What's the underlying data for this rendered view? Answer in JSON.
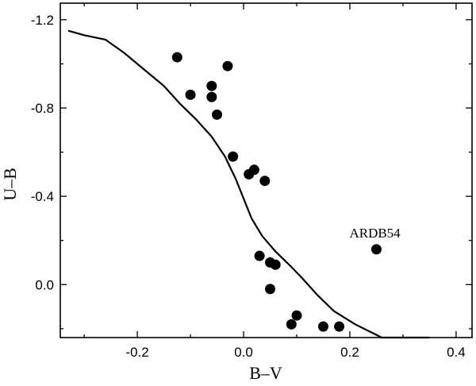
{
  "chart_data": {
    "type": "scatter",
    "xlabel": "B–V",
    "ylabel": "U–B",
    "xlim": [
      -0.345,
      0.43
    ],
    "ylim": [
      0.24,
      -1.275
    ],
    "y_inverted": true,
    "grid": false,
    "x_ticks": [
      {
        "value": -0.2,
        "label": "-0.2"
      },
      {
        "value": 0.0,
        "label": "0.0"
      },
      {
        "value": 0.2,
        "label": "0.2"
      },
      {
        "value": 0.4,
        "label": "0.4"
      }
    ],
    "y_ticks": [
      {
        "value": -1.2,
        "label": "-1.2"
      },
      {
        "value": -0.8,
        "label": "-0.8"
      },
      {
        "value": -0.4,
        "label": "-0.4"
      },
      {
        "value": 0.0,
        "label": "0.0"
      }
    ],
    "series": [
      {
        "kind": "line",
        "points": [
          [
            -0.33,
            -1.15
          ],
          [
            -0.3,
            -1.13
          ],
          [
            -0.26,
            -1.11
          ],
          [
            -0.225,
            -1.05
          ],
          [
            -0.19,
            -0.98
          ],
          [
            -0.15,
            -0.9
          ],
          [
            -0.12,
            -0.82
          ],
          [
            -0.09,
            -0.75
          ],
          [
            -0.06,
            -0.67
          ],
          [
            -0.035,
            -0.58
          ],
          [
            -0.015,
            -0.48
          ],
          [
            0.0,
            -0.39
          ],
          [
            0.015,
            -0.3
          ],
          [
            0.035,
            -0.22
          ],
          [
            0.06,
            -0.15
          ],
          [
            0.09,
            -0.08
          ],
          [
            0.11,
            -0.03
          ],
          [
            0.14,
            0.05
          ],
          [
            0.17,
            0.12
          ],
          [
            0.21,
            0.18
          ],
          [
            0.26,
            0.24
          ],
          [
            0.31,
            0.265
          ],
          [
            0.35,
            0.29
          ]
        ]
      },
      {
        "kind": "scatter",
        "points": [
          [
            -0.125,
            -1.03
          ],
          [
            -0.1,
            -0.86
          ],
          [
            -0.06,
            -0.9
          ],
          [
            -0.06,
            -0.85
          ],
          [
            -0.05,
            -0.77
          ],
          [
            -0.03,
            -0.99
          ],
          [
            -0.02,
            -0.58
          ],
          [
            0.01,
            -0.5
          ],
          [
            0.02,
            -0.52
          ],
          [
            0.04,
            -0.47
          ],
          [
            0.03,
            -0.13
          ],
          [
            0.05,
            -0.1
          ],
          [
            0.06,
            -0.09
          ],
          [
            0.05,
            0.02
          ],
          [
            0.1,
            0.14
          ],
          [
            0.09,
            0.18
          ],
          [
            0.15,
            0.19
          ],
          [
            0.18,
            0.19
          ],
          [
            0.25,
            -0.16
          ]
        ]
      }
    ],
    "annotations": [
      {
        "text": "ARDB54",
        "x": 0.25,
        "y": -0.16
      }
    ]
  }
}
